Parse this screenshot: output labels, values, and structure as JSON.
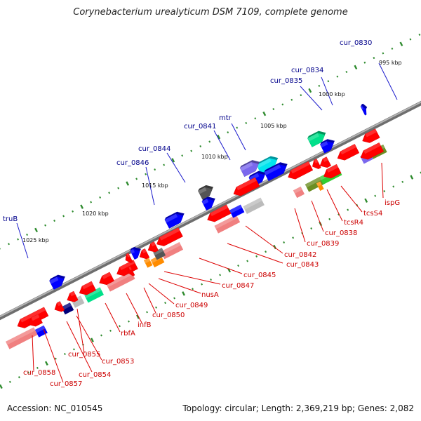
{
  "title": "Corynebacterium urealyticum DSM 7109, complete genome",
  "footer": {
    "accession": "Accession: NC_010545",
    "summary": "Topology: circular; Length: 2,369,219 bp; Genes: 2,082"
  },
  "colors": {
    "backbone": "#8c8c8c",
    "tick": "#2e8b2e",
    "red": "#ff0000",
    "salmon": "#f08080",
    "blue": "#0000ff",
    "purple": "#7b68ee",
    "cyan": "#00e5ee",
    "green": "#32cd32",
    "olive": "#6b8e23",
    "orange": "#ff8c00",
    "grey": "#bbbbbb",
    "darkgrey": "#555555",
    "navy": "#00007a",
    "mint": "#00e08a",
    "label_forward": "#00008b",
    "label_reverse": "#cc0000"
  },
  "kbp_labels": [
    "995 kbp",
    "1000 kbp",
    "1005 kbp",
    "1010 kbp",
    "1015 kbp",
    "1020 kbp",
    "1025 kbp"
  ],
  "forward_labels": [
    "cur_0830",
    "cur_0834",
    "cur_0835",
    "mtr",
    "cur_0841",
    "cur_0844",
    "cur_0846",
    "truB"
  ],
  "reverse_labels": [
    "ispG",
    "tcsS4",
    "tcsR4",
    "cur_0838",
    "cur_0839",
    "cur_0842",
    "cur_0843",
    "cur_0845",
    "cur_0847",
    "nusA",
    "cur_0849",
    "cur_0850",
    "infB",
    "rbfA",
    "cur_0853",
    "cur_0854",
    "cur_0855",
    "cur_0857",
    "cur_0858"
  ]
}
